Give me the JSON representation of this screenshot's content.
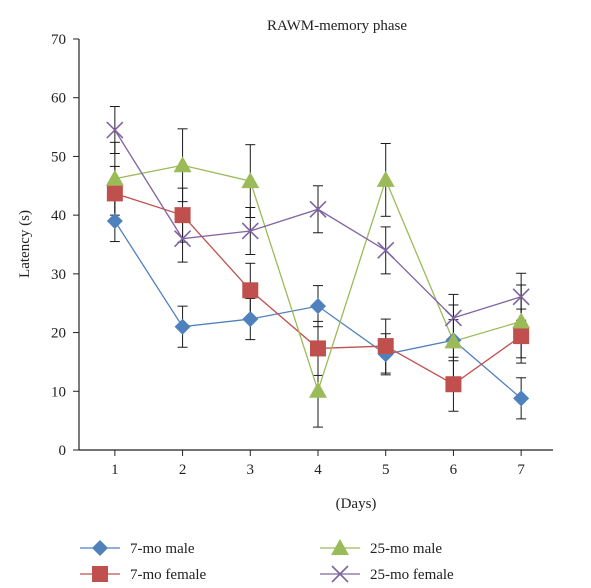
{
  "chart_data": {
    "type": "line",
    "title": "RAWM-memory phase",
    "xlabel": "(Days)",
    "ylabel": "Latency (s)",
    "x": [
      1,
      2,
      3,
      4,
      5,
      6,
      7
    ],
    "xticks": [
      "1",
      "2",
      "3",
      "4",
      "5",
      "6",
      "7"
    ],
    "ylim": [
      0,
      70
    ],
    "yticks": [
      "0",
      "10",
      "20",
      "30",
      "40",
      "50",
      "60",
      "70"
    ],
    "grid": false,
    "legend_position": "bottom",
    "series": [
      {
        "name": "7-mo male",
        "marker": "diamond",
        "color": "#4f81bd",
        "values": [
          39,
          21,
          22.3,
          24.5,
          16.3,
          18.7,
          8.8
        ],
        "errors": [
          3.5,
          3.5,
          3.5,
          3.5,
          3.5,
          3.5,
          3.5
        ]
      },
      {
        "name": "7-mo female",
        "marker": "square",
        "color": "#c0504d",
        "values": [
          43.7,
          40,
          27.2,
          17.3,
          17.7,
          11.2,
          19.4
        ],
        "errors": [
          4.6,
          4.6,
          4.6,
          4.6,
          4.6,
          4.6,
          4.6
        ]
      },
      {
        "name": "25-mo male",
        "marker": "triangle",
        "color": "#9bbb59",
        "values": [
          46.2,
          48.5,
          45.8,
          10.1,
          46,
          18.5,
          21.9
        ],
        "errors": [
          6.2,
          6.2,
          6.2,
          6.2,
          6.2,
          6.2,
          6.2
        ]
      },
      {
        "name": "25-mo female",
        "marker": "x",
        "color": "#8064a2",
        "values": [
          54.5,
          36,
          37.3,
          41,
          34,
          22.5,
          26.1
        ],
        "errors": [
          4,
          4,
          4,
          4,
          4,
          4,
          4
        ]
      }
    ]
  }
}
